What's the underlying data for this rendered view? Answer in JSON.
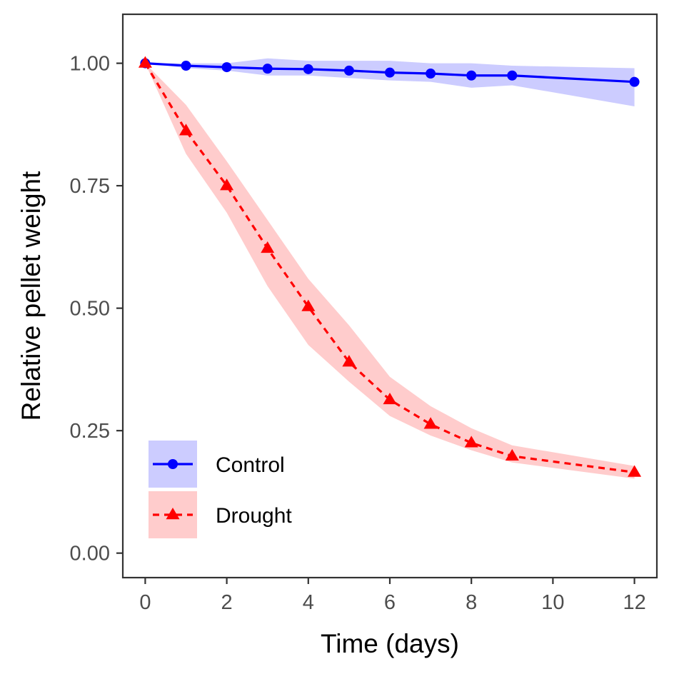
{
  "chart_data": {
    "type": "line",
    "xlabel": "Time (days)",
    "ylabel": "Relative pellet weight",
    "xlim": [
      -0.55,
      12.55
    ],
    "ylim": [
      -0.05,
      1.1
    ],
    "x_ticks": [
      0,
      2,
      4,
      6,
      8,
      10,
      12
    ],
    "y_ticks": [
      0.0,
      0.25,
      0.5,
      0.75,
      1.0
    ],
    "x_tick_labels": [
      "0",
      "2",
      "4",
      "6",
      "8",
      "10",
      "12"
    ],
    "y_tick_labels": [
      "0.00",
      "0.25",
      "0.50",
      "0.75",
      "1.00"
    ],
    "grid": false,
    "legend_position": "bottom-left",
    "series": [
      {
        "name": "Control",
        "color": "#0000ff",
        "ribbon_color": "#ccccff",
        "line_style": "solid",
        "marker": "circle",
        "x": [
          0,
          1,
          2,
          3,
          4,
          5,
          6,
          7,
          8,
          9,
          12
        ],
        "y": [
          1.0,
          0.995,
          0.992,
          0.989,
          0.988,
          0.985,
          0.981,
          0.979,
          0.975,
          0.975,
          0.962
        ],
        "lower": [
          1.0,
          0.99,
          0.985,
          0.975,
          0.975,
          0.97,
          0.965,
          0.962,
          0.95,
          0.955,
          0.912
        ],
        "upper": [
          1.0,
          1.0,
          1.0,
          1.01,
          1.005,
          1.005,
          1.005,
          1.0,
          1.0,
          0.995,
          0.99
        ]
      },
      {
        "name": "Drought",
        "color": "#ff0000",
        "ribbon_color": "#ffcccc",
        "line_style": "dashed",
        "marker": "triangle",
        "x": [
          0,
          1,
          2,
          3,
          4,
          5,
          6,
          7,
          8,
          9,
          12
        ],
        "y": [
          1.0,
          0.862,
          0.75,
          0.622,
          0.503,
          0.39,
          0.313,
          0.263,
          0.225,
          0.198,
          0.165
        ],
        "lower": [
          1.0,
          0.815,
          0.695,
          0.545,
          0.425,
          0.35,
          0.28,
          0.24,
          0.21,
          0.185,
          0.152
        ],
        "upper": [
          1.0,
          0.915,
          0.8,
          0.68,
          0.56,
          0.465,
          0.36,
          0.3,
          0.255,
          0.22,
          0.178
        ]
      }
    ]
  }
}
